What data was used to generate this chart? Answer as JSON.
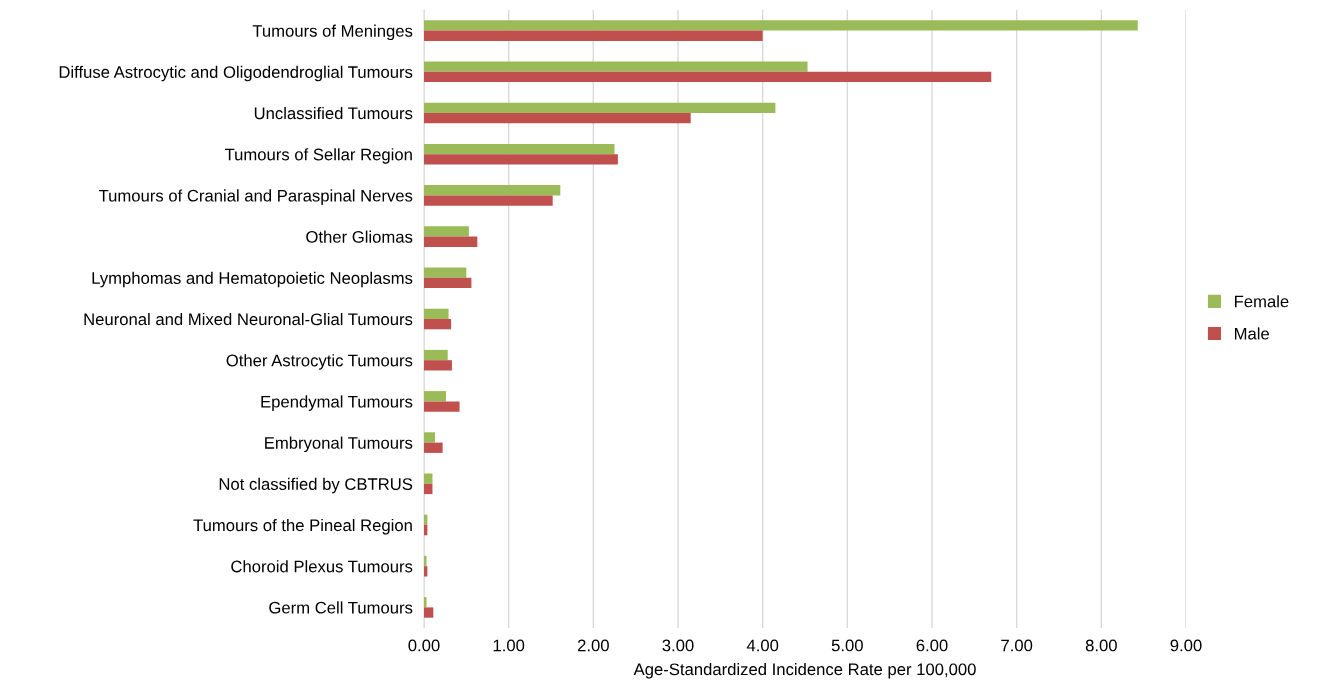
{
  "chart_data": {
    "type": "bar",
    "orientation": "horizontal",
    "xlabel": "Age-Standardized Incidence Rate per 100,000",
    "categories": [
      "Tumours of Meninges",
      "Diffuse Astrocytic and Oligodendroglial Tumours",
      "Unclassified Tumours",
      "Tumours of Sellar Region",
      "Tumours of Cranial and Paraspinal Nerves",
      "Other Gliomas",
      "Lymphomas and Hematopoietic Neoplasms",
      "Neuronal and Mixed Neuronal-Glial Tumours",
      "Other Astrocytic Tumours",
      "Ependymal Tumours",
      "Embryonal Tumours",
      "Not classified by CBTRUS",
      "Tumours of the Pineal Region",
      "Choroid Plexus Tumours",
      "Germ Cell Tumours"
    ],
    "series": [
      {
        "name": "Female",
        "color": "#9bbb59",
        "values": [
          8.43,
          4.53,
          4.15,
          2.25,
          1.61,
          0.53,
          0.5,
          0.29,
          0.28,
          0.26,
          0.13,
          0.1,
          0.04,
          0.03,
          0.03
        ]
      },
      {
        "name": "Male",
        "color": "#c0504d",
        "values": [
          4.0,
          6.7,
          3.15,
          2.29,
          1.52,
          0.63,
          0.56,
          0.32,
          0.33,
          0.42,
          0.22,
          0.1,
          0.04,
          0.04,
          0.11
        ]
      }
    ],
    "xlim": [
      0,
      9
    ],
    "xticks": [
      {
        "value": 0,
        "label": "0.00"
      },
      {
        "value": 1,
        "label": "1.00"
      },
      {
        "value": 2,
        "label": "2.00"
      },
      {
        "value": 3,
        "label": "3.00"
      },
      {
        "value": 4,
        "label": "4.00"
      },
      {
        "value": 5,
        "label": "5.00"
      },
      {
        "value": 6,
        "label": "6.00"
      },
      {
        "value": 7,
        "label": "7.00"
      },
      {
        "value": 8,
        "label": "8.00"
      },
      {
        "value": 9,
        "label": "9.00"
      }
    ],
    "grid": "x",
    "legend": "right"
  }
}
